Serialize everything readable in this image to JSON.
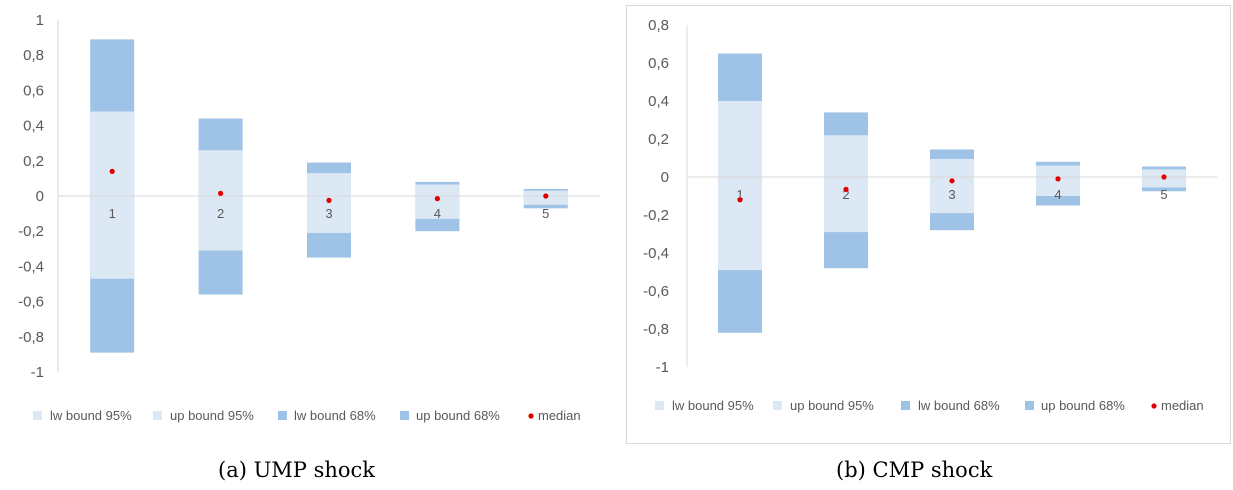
{
  "captions": {
    "a": "(a) UMP shock",
    "b": "(b) CMP shock"
  },
  "colors": {
    "band95": "#dde8f5",
    "band68": "#9fc3e6",
    "median": "#e00000",
    "axis": "#d9d9d9",
    "text": "#595959"
  },
  "chart_data": [
    {
      "type": "bar",
      "subtype": "floating-range",
      "title": "",
      "xlabel": "",
      "ylabel": "",
      "ylim": [
        -1,
        1
      ],
      "yticks": [
        "1",
        "0,8",
        "0,6",
        "0,4",
        "0,2",
        "0",
        "-0,2",
        "-0,4",
        "-0,6",
        "-0,8",
        "-1"
      ],
      "categories": [
        "1",
        "2",
        "3",
        "4",
        "5"
      ],
      "series": [
        {
          "name": "lw bound 95%",
          "values": [
            -0.89,
            -0.56,
            -0.35,
            -0.2,
            -0.07
          ]
        },
        {
          "name": "up bound 95%",
          "values": [
            0.89,
            0.44,
            0.19,
            0.08,
            0.04
          ]
        },
        {
          "name": "lw bound 68%",
          "values": [
            -0.47,
            -0.31,
            -0.21,
            -0.13,
            -0.05
          ]
        },
        {
          "name": "up bound 68%",
          "values": [
            0.48,
            0.26,
            0.13,
            0.065,
            0.03
          ]
        },
        {
          "name": "median",
          "values": [
            0.14,
            0.015,
            -0.025,
            -0.015,
            0.0
          ]
        }
      ],
      "legend": [
        "lw bound 95%",
        "up bound 95%",
        "lw bound 68%",
        "up bound 68%",
        "median"
      ],
      "legend_position": "bottom",
      "grid": false
    },
    {
      "type": "bar",
      "subtype": "floating-range",
      "title": "",
      "xlabel": "",
      "ylabel": "",
      "ylim": [
        -1,
        0.8
      ],
      "yticks": [
        "0,8",
        "0,6",
        "0,4",
        "0,2",
        "0",
        "-0,2",
        "-0,4",
        "-0,6",
        "-0,8",
        "-1"
      ],
      "categories": [
        "1",
        "2",
        "3",
        "4",
        "5"
      ],
      "series": [
        {
          "name": "lw bound 95%",
          "values": [
            -0.82,
            -0.48,
            -0.28,
            -0.15,
            -0.075
          ]
        },
        {
          "name": "up bound 95%",
          "values": [
            0.65,
            0.34,
            0.145,
            0.08,
            0.055
          ]
        },
        {
          "name": "lw bound 68%",
          "values": [
            -0.49,
            -0.29,
            -0.19,
            -0.1,
            -0.055
          ]
        },
        {
          "name": "up bound 68%",
          "values": [
            0.4,
            0.22,
            0.095,
            0.06,
            0.04
          ]
        },
        {
          "name": "median",
          "values": [
            -0.12,
            -0.065,
            -0.02,
            -0.01,
            0.0
          ]
        }
      ],
      "legend": [
        "lw bound 95%",
        "up bound 95%",
        "lw bound 68%",
        "up bound 68%",
        "median"
      ],
      "legend_position": "bottom",
      "grid": false
    }
  ]
}
